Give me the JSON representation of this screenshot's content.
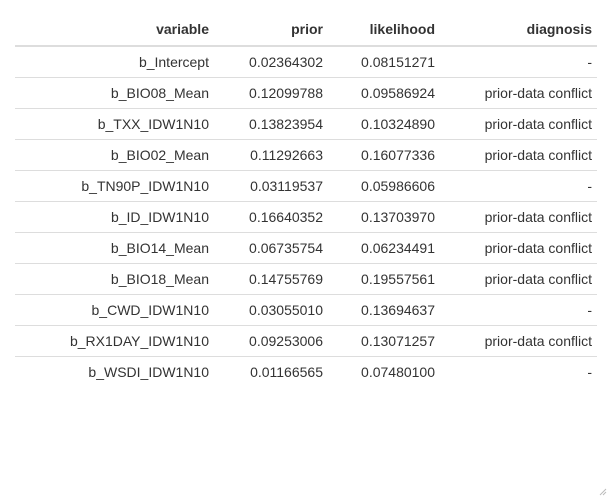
{
  "table": {
    "headers": {
      "variable": "variable",
      "prior": "prior",
      "likelihood": "likelihood",
      "diagnosis": "diagnosis"
    },
    "rows": [
      {
        "variable": "b_Intercept",
        "prior": "0.02364302",
        "likelihood": "0.08151271",
        "diagnosis": "-"
      },
      {
        "variable": "b_BIO08_Mean",
        "prior": "0.12099788",
        "likelihood": "0.09586924",
        "diagnosis": "prior-data conflict"
      },
      {
        "variable": "b_TXX_IDW1N10",
        "prior": "0.13823954",
        "likelihood": "0.10324890",
        "diagnosis": "prior-data conflict"
      },
      {
        "variable": "b_BIO02_Mean",
        "prior": "0.11292663",
        "likelihood": "0.16077336",
        "diagnosis": "prior-data conflict"
      },
      {
        "variable": "b_TN90P_IDW1N10",
        "prior": "0.03119537",
        "likelihood": "0.05986606",
        "diagnosis": "-"
      },
      {
        "variable": "b_ID_IDW1N10",
        "prior": "0.16640352",
        "likelihood": "0.13703970",
        "diagnosis": "prior-data conflict"
      },
      {
        "variable": "b_BIO14_Mean",
        "prior": "0.06735754",
        "likelihood": "0.06234491",
        "diagnosis": "prior-data conflict"
      },
      {
        "variable": "b_BIO18_Mean",
        "prior": "0.14755769",
        "likelihood": "0.19557561",
        "diagnosis": "prior-data conflict"
      },
      {
        "variable": "b_CWD_IDW1N10",
        "prior": "0.03055010",
        "likelihood": "0.13694637",
        "diagnosis": "-"
      },
      {
        "variable": "b_RX1DAY_IDW1N10",
        "prior": "0.09253006",
        "likelihood": "0.13071257",
        "diagnosis": "prior-data conflict"
      },
      {
        "variable": "b_WSDI_IDW1N10",
        "prior": "0.01166565",
        "likelihood": "0.07480100",
        "diagnosis": "-"
      }
    ]
  },
  "colors": {
    "text": "#333333",
    "border": "#dddddd",
    "background": "#ffffff"
  },
  "icons": {
    "resize": "resize-grip-icon"
  }
}
